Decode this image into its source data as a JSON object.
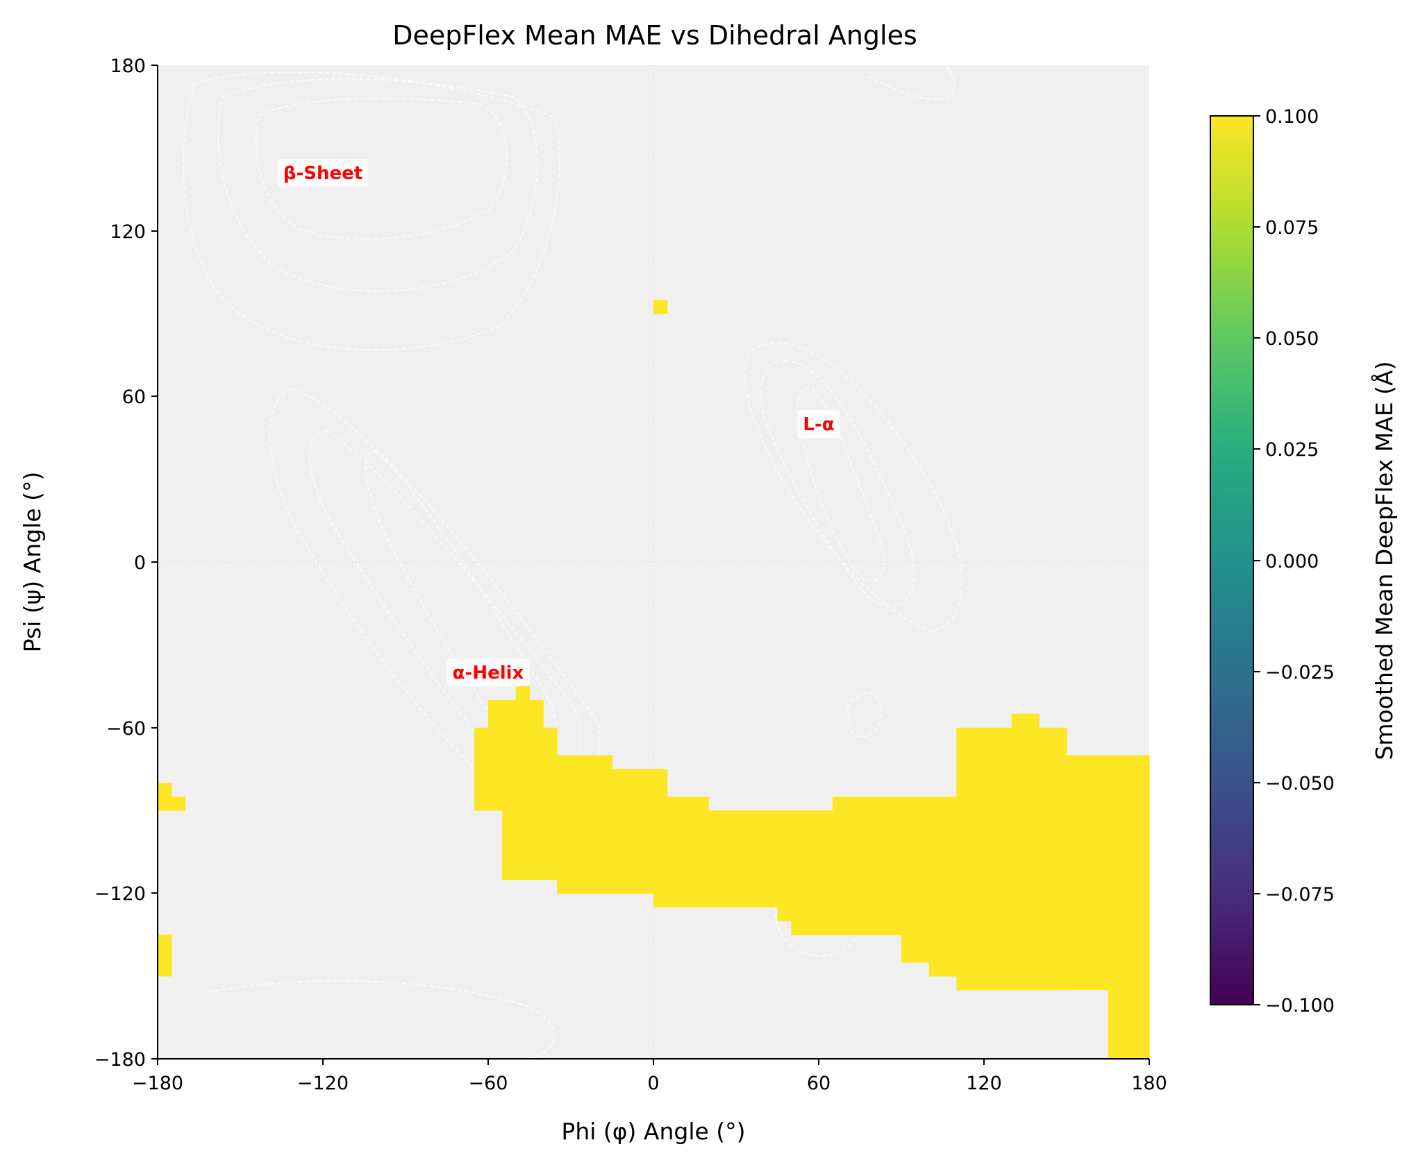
{
  "chart_data": {
    "type": "heatmap",
    "title": "DeepFlex Mean MAE vs Dihedral Angles",
    "xlabel": "Phi (φ) Angle (°)",
    "ylabel": "Psi (ψ) Angle (°)",
    "xlim": [
      -180,
      180
    ],
    "ylim": [
      -180,
      180
    ],
    "xticks": [
      "−180",
      "−120",
      "−60",
      "0",
      "60",
      "120",
      "180"
    ],
    "yticks": [
      "−180",
      "−120",
      "−60",
      "0",
      "60",
      "120",
      "180"
    ],
    "background_color": "#f0f0f0",
    "cell_color": "#fde725",
    "colorbar": {
      "label": "Smoothed Mean DeepFlex MAE (Å)",
      "range": [
        -0.1,
        0.1
      ],
      "ticks": [
        "−0.100",
        "−0.075",
        "−0.050",
        "−0.025",
        "0.000",
        "0.025",
        "0.050",
        "0.075",
        "0.100"
      ],
      "colormap": "viridis"
    },
    "annotations": [
      {
        "text": "β-Sheet",
        "phi": -120,
        "psi": 141
      },
      {
        "text": "L-α",
        "phi": 60,
        "psi": 50
      },
      {
        "text": "α-Helix",
        "phi": -60,
        "psi": -40
      }
    ],
    "filled_regions_value": 0.1,
    "filled_regions": [
      {
        "phi": [
          0,
          5
        ],
        "psi": [
          90,
          95
        ]
      },
      {
        "phi": [
          -180,
          -175
        ],
        "psi": [
          -90,
          -80
        ]
      },
      {
        "phi": [
          -175,
          -170
        ],
        "psi": [
          -90,
          -85
        ]
      },
      {
        "phi": [
          -180,
          -175
        ],
        "psi": [
          -150,
          -135
        ]
      },
      {
        "phi": [
          -50,
          -45
        ],
        "psi": [
          -50,
          -45
        ]
      },
      {
        "phi": [
          -60,
          -40
        ],
        "psi": [
          -60,
          -50
        ]
      },
      {
        "phi": [
          -65,
          -35
        ],
        "psi": [
          -70,
          -60
        ]
      },
      {
        "phi": [
          -65,
          -55
        ],
        "psi": [
          -90,
          -70
        ]
      },
      {
        "phi": [
          -55,
          -15
        ],
        "psi": [
          -115,
          -70
        ]
      },
      {
        "phi": [
          -35,
          -15
        ],
        "psi": [
          -120,
          -115
        ]
      },
      {
        "phi": [
          -15,
          0
        ],
        "psi": [
          -120,
          -75
        ]
      },
      {
        "phi": [
          0,
          5
        ],
        "psi": [
          -125,
          -75
        ]
      },
      {
        "phi": [
          5,
          20
        ],
        "psi": [
          -125,
          -85
        ]
      },
      {
        "phi": [
          20,
          45
        ],
        "psi": [
          -125,
          -90
        ]
      },
      {
        "phi": [
          45,
          50
        ],
        "psi": [
          -130,
          -90
        ]
      },
      {
        "phi": [
          50,
          65
        ],
        "psi": [
          -135,
          -90
        ]
      },
      {
        "phi": [
          65,
          90
        ],
        "psi": [
          -135,
          -85
        ]
      },
      {
        "phi": [
          90,
          100
        ],
        "psi": [
          -145,
          -85
        ]
      },
      {
        "phi": [
          100,
          110
        ],
        "psi": [
          -150,
          -85
        ]
      },
      {
        "phi": [
          110,
          130
        ],
        "psi": [
          -155,
          -60
        ]
      },
      {
        "phi": [
          130,
          140
        ],
        "psi": [
          -155,
          -55
        ]
      },
      {
        "phi": [
          140,
          150
        ],
        "psi": [
          -155,
          -60
        ]
      },
      {
        "phi": [
          150,
          165
        ],
        "psi": [
          -155,
          -70
        ]
      },
      {
        "phi": [
          165,
          180
        ],
        "psi": [
          -180,
          -70
        ]
      }
    ]
  }
}
